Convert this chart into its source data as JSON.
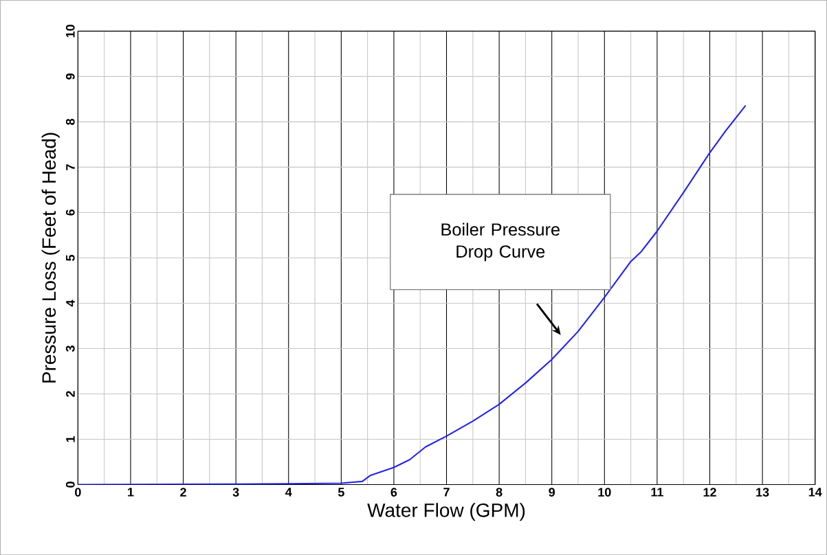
{
  "chart_data": {
    "type": "line",
    "xlabel": "Water Flow (GPM)",
    "ylabel": "Pressure Loss (Feet of Head)",
    "xlim": [
      0,
      14
    ],
    "ylim": [
      0,
      10
    ],
    "xticks": [
      0,
      1,
      2,
      3,
      4,
      5,
      6,
      7,
      8,
      9,
      10,
      11,
      12,
      13,
      14
    ],
    "yticks": [
      0,
      1,
      2,
      3,
      4,
      5,
      6,
      7,
      8,
      9,
      10
    ],
    "grid": true,
    "series": [
      {
        "color": "#2323f0",
        "x": [
          0,
          3,
          4,
          5,
          5.4,
          5.55,
          6,
          6.3,
          6.6,
          7,
          7.5,
          8,
          8.5,
          9,
          9.5,
          10,
          10.5,
          10.7,
          11,
          11.5,
          12,
          12.3,
          12.68
        ],
        "values": [
          0,
          0.01,
          0.02,
          0.03,
          0.07,
          0.2,
          0.38,
          0.55,
          0.83,
          1.07,
          1.4,
          1.77,
          2.24,
          2.76,
          3.38,
          4.13,
          4.92,
          5.14,
          5.59,
          6.44,
          7.32,
          7.8,
          8.36
        ]
      }
    ],
    "annotations": [
      "Boiler Pressure Drop Curve"
    ]
  }
}
